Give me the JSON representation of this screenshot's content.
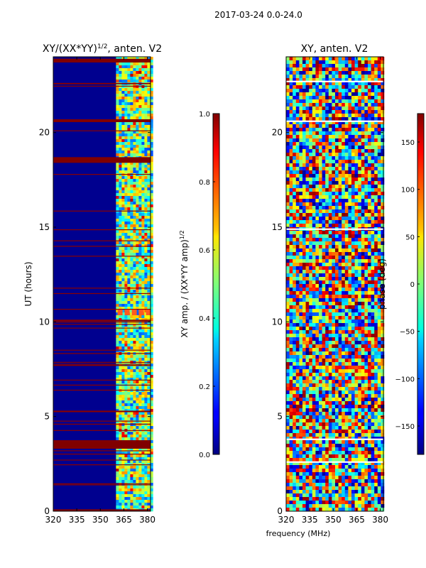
{
  "figure": {
    "suptitle": "2017-03-24 0.0-24.0",
    "xlabel_shared": "frequency (MHz)"
  },
  "chart_data": [
    {
      "type": "heatmap",
      "title": "XY/(XX*YY)",
      "title_exponent": "1/2",
      "title_suffix": ", anten. V2",
      "xlabel": "",
      "ylabel": "UT (hours)",
      "xlim": [
        320,
        382
      ],
      "ylim": [
        0,
        24
      ],
      "xticks": [
        320,
        335,
        350,
        365,
        380
      ],
      "yticks": [
        0,
        5,
        10,
        15,
        20
      ],
      "colorbar": {
        "label": "XY amp. / (XX*YY amp)",
        "label_exponent": "1/2",
        "range": [
          0.0,
          1.0
        ],
        "ticks": [
          "0.0",
          "0.2",
          "0.4",
          "0.6",
          "0.8",
          "1.0"
        ],
        "cmap": "jet"
      },
      "saturated_hour_bands": [
        [
          0.0,
          0.1
        ],
        [
          3.3,
          3.75
        ],
        [
          18.4,
          18.7
        ],
        [
          20.55,
          20.7
        ],
        [
          23.7,
          23.9
        ]
      ],
      "bright_channel_range_mhz": [
        360,
        382
      ],
      "hotspot": {
        "ut_hours": 10.5,
        "freq_mhz": [
          361,
          381
        ]
      }
    },
    {
      "type": "heatmap",
      "title": "XY, anten. V2",
      "xlabel": "frequency (MHz)",
      "ylabel": "",
      "xlim": [
        320,
        382
      ],
      "ylim": [
        0,
        24
      ],
      "xticks": [
        320,
        335,
        350,
        365,
        380
      ],
      "yticks": [
        0,
        5,
        10,
        15,
        20
      ],
      "colorbar": {
        "label": "phase (deg)",
        "range": [
          -180,
          180
        ],
        "ticks": [
          "−150",
          "−100",
          "−50",
          "0",
          "50",
          "100",
          "150"
        ],
        "cmap": "jet"
      },
      "gap_hour_lines": [
        2.6,
        3.8,
        14.9,
        20.6,
        22.7
      ]
    }
  ]
}
